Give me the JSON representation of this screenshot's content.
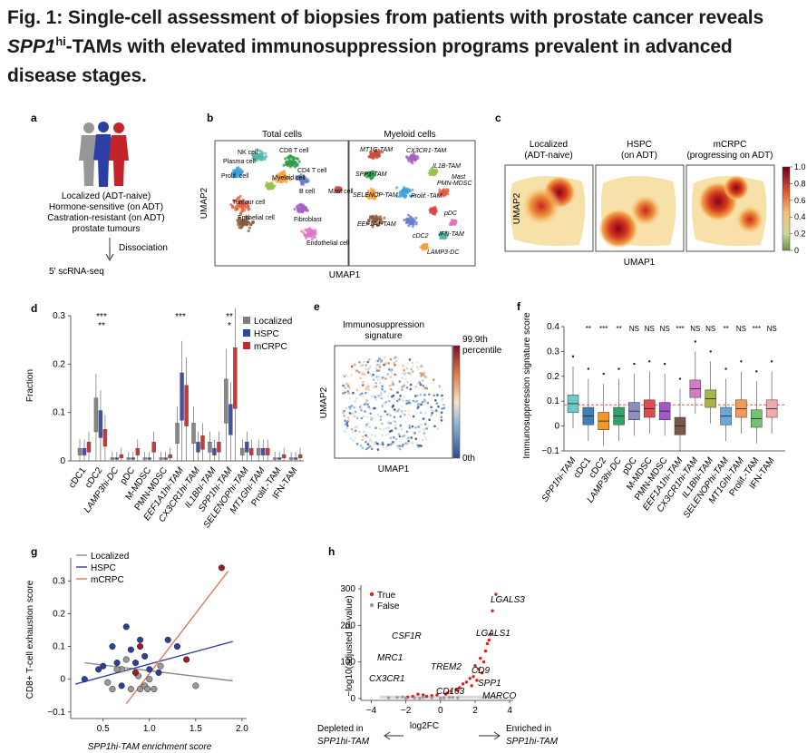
{
  "caption": {
    "lead": "Fig. 1: Single-cell assessment of biopsies from patients with prostate cancer reveals ",
    "gene": "SPP1",
    "sup": "hi",
    "rest": "-TAMs with elevated immunosuppression programs prevalent in advanced disease stages."
  },
  "panel_a": {
    "label": "a",
    "lines": [
      "Localized (ADT-naive)",
      "Hormone-sensitive (on ADT)",
      "Castration-resistant (on ADT)",
      "prostate tumours"
    ],
    "step": "Dissociation",
    "result": "5′ scRNA-seq"
  },
  "panel_b": {
    "label": "b",
    "xlabel": "UMAP1",
    "ylabel": "UMAP2",
    "left_title": "Total cells",
    "right_title": "Myeloid cells",
    "left_clusters": [
      "NK cell",
      "CD8 T cell",
      "Plasma cell",
      "Prolif. cell",
      "Myeloid cell",
      "CD4 T cell",
      "B cell",
      "Mast cell",
      "Tumour cell",
      "Fibroblast",
      "Epithelial cell",
      "Endothelial cell"
    ],
    "right_clusters": [
      "MT1G-TAM",
      "CX3CR1-TAM",
      "SPP1-TAM",
      "IL1B-TAM",
      "PMN-MDSC",
      "SELENOP-TAM",
      "Prolif.-TAM",
      "Mast",
      "EEF1A1-TAM",
      "cDC2",
      "IFN-TAM",
      "pDC",
      "LAMP3-DC"
    ],
    "colors": [
      "#e8593a",
      "#c94b3a",
      "#3ea0d8",
      "#2e9b48",
      "#f4a23a",
      "#8b5a3c",
      "#a45fc4",
      "#e076c0",
      "#55b6a8",
      "#d94545",
      "#98c24a",
      "#6a7fc8"
    ]
  },
  "panel_c": {
    "label": "c",
    "xlabel": "UMAP1",
    "ylabel": "UMAP2",
    "titles": [
      [
        "Localized",
        "(ADT-naive)"
      ],
      [
        "HSPC",
        "(on ADT)"
      ],
      [
        "mCRPC",
        "(progressing on ADT)"
      ]
    ],
    "colorbar_ticks": [
      "1.0",
      "0.8",
      "0.6",
      "0.4",
      "0.2",
      "0"
    ]
  },
  "panel_e": {
    "label": "e",
    "title": [
      "Immunosuppression",
      "signature"
    ],
    "xlabel": "UMAP1",
    "ylabel": "UMAP2",
    "colorbar_top": [
      "99.9th",
      "percentile"
    ],
    "colorbar_bottom": "0th"
  },
  "panel_h": {
    "label": "h",
    "ylabel": "−log10(adjusted P-value)",
    "xlabel": "log2FC",
    "legend": [
      "True",
      "False"
    ],
    "left_note": [
      "Depleted in",
      "SPP1hi-TAM"
    ],
    "right_note": [
      "Enriched in",
      "SPP1hi-TAM"
    ],
    "genes": [
      "LGALS3",
      "LGALS1",
      "CSF1R",
      "MRC1",
      "TREM2",
      "CD9",
      "SPP1",
      "CX3CR1",
      "CD163",
      "MARCO"
    ]
  },
  "chart_data": [
    {
      "id": "d",
      "type": "bar",
      "label": "d",
      "ylabel": "Fraction",
      "ylim": [
        0,
        0.3
      ],
      "yticks": [
        "0",
        "0.1",
        "0.2",
        "0.3"
      ],
      "legend": [
        "Localized",
        "HSPC",
        "mCRPC"
      ],
      "legend_colors": [
        "#7f7f7f",
        "#2f45a8",
        "#c52a2a"
      ],
      "categories": [
        "cDC1",
        "cDC2",
        "LAMP3hi-DC",
        "pDC",
        "M-MDSC",
        "PMN-MDSC",
        "EEF1A1hi-TAM",
        "CX3CR1hi-TAM",
        "IL1Bhi-TAM",
        "SPP1hi-TAM",
        "SELENOPhi-TAM",
        "MT1Ghi-TAM",
        "Prolif.-TAM",
        "IFN-TAM"
      ],
      "series": [
        {
          "name": "Localized",
          "values": [
            0.02,
            0.1,
            0.005,
            0.005,
            0.005,
            0.005,
            0.06,
            0.06,
            0.03,
            0.13,
            0.02,
            0.02,
            0.005,
            0.005
          ]
        },
        {
          "name": "HSPC",
          "values": [
            0.02,
            0.08,
            0.005,
            0.005,
            0.005,
            0.005,
            0.14,
            0.03,
            0.02,
            0.09,
            0.03,
            0.02,
            0.005,
            0.005
          ]
        },
        {
          "name": "mCRPC",
          "values": [
            0.03,
            0.05,
            0.01,
            0.02,
            0.03,
            0.01,
            0.12,
            0.04,
            0.03,
            0.18,
            0.02,
            0.02,
            0.01,
            0.01
          ]
        }
      ],
      "annotations": [
        "***",
        "**",
        "***",
        "**",
        "*"
      ]
    },
    {
      "id": "f",
      "type": "bar",
      "label": "f",
      "ylabel": "Immunosuppression signature score",
      "ylim": [
        -0.1,
        0.4
      ],
      "yticks": [
        "−0.1",
        "0",
        "0.1",
        "0.2",
        "0.3",
        "0.4"
      ],
      "categories": [
        "SPP1hi-TAM",
        "cDC1",
        "cDC2",
        "LAMP3hi-DC",
        "pDC",
        "M-MDSC",
        "PMN-MDSC",
        "EEF1A1hi-TAM",
        "CX3CR1hi-TAM",
        "IL1Bhi-TAM",
        "SELENOPhi-TAM",
        "MT1Ghi-TAM",
        "Prolif.-TAM",
        "IFN-TAM"
      ],
      "values": [
        0.09,
        0.04,
        0.02,
        0.04,
        0.06,
        0.07,
        0.06,
        0.0,
        0.15,
        0.11,
        0.04,
        0.07,
        0.03,
        0.07
      ],
      "colors": [
        "#6dc8c8",
        "#3f7fb5",
        "#f0982a",
        "#2ea26f",
        "#8b8fc0",
        "#e04b4b",
        "#a059c8",
        "#7a5848",
        "#d77ac6",
        "#a6b64a",
        "#6aa8d8",
        "#f39a56",
        "#74c373",
        "#f1a9ae"
      ],
      "annotations": [
        "**",
        "***",
        "**",
        "NS",
        "NS",
        "NS",
        "***",
        "NS",
        "NS",
        "**",
        "NS",
        "***",
        "NS"
      ]
    },
    {
      "id": "g",
      "type": "scatter",
      "label": "g",
      "xlabel": "SPP1hi-TAM enrichment score",
      "ylabel": "CD8+ T-cell exhaustion score",
      "xlim": [
        0.15,
        2.05
      ],
      "ylim": [
        -0.12,
        0.37
      ],
      "xticks": [
        "0.5",
        "1.0",
        "1.5",
        "2.0"
      ],
      "yticks": [
        "−0.1",
        "0",
        "0.1",
        "0.2",
        "0.3"
      ],
      "legend": [
        "Localized",
        "HSPC",
        "mCRPC"
      ],
      "series": [
        {
          "name": "Localized",
          "color": "#999999",
          "x": [
            0.55,
            0.7,
            0.8,
            0.85,
            0.9,
            0.95,
            1.0,
            1.05,
            0.75,
            0.65,
            0.88,
            1.12,
            0.6,
            0.98,
            1.5
          ],
          "y": [
            -0.01,
            0.03,
            -0.03,
            0.02,
            -0.03,
            -0.02,
            0.0,
            -0.03,
            0.06,
            0.03,
            0.01,
            0.04,
            -0.03,
            -0.03,
            -0.02
          ]
        },
        {
          "name": "HSPC",
          "color": "#2e3f9b",
          "x": [
            0.3,
            0.5,
            0.6,
            0.7,
            0.8,
            0.9,
            1.0,
            1.1,
            1.3,
            0.75,
            0.85,
            0.95,
            1.2,
            0.45,
            0.65
          ],
          "y": [
            0.0,
            0.04,
            0.1,
            -0.02,
            0.09,
            0.12,
            0.03,
            0.02,
            0.1,
            0.16,
            0.05,
            0.07,
            0.12,
            0.03,
            0.05
          ]
        },
        {
          "name": "mCRPC",
          "color": "#a01b24",
          "x": [
            0.9,
            1.4,
            1.78,
            0.85
          ],
          "y": [
            0.1,
            0.06,
            0.34,
            0.02
          ]
        }
      ],
      "fits": [
        {
          "name": "Localized",
          "color": "#8a8a8a",
          "x": [
            0.3,
            1.9
          ],
          "y": [
            0.05,
            -0.005
          ]
        },
        {
          "name": "HSPC",
          "color": "#2e3f9b",
          "x": [
            0.2,
            1.9
          ],
          "y": [
            -0.015,
            0.115
          ]
        },
        {
          "name": "mCRPC",
          "color": "#e07a5f",
          "x": [
            0.75,
            1.85
          ],
          "y": [
            -0.075,
            0.33
          ]
        }
      ]
    },
    {
      "id": "h",
      "type": "scatter",
      "label": "h",
      "xlim": [
        -4.6,
        4.2
      ],
      "ylim": [
        -5,
        310
      ],
      "xticks": [
        "−4",
        "−2",
        "0",
        "2",
        "4"
      ],
      "yticks": [
        "0",
        "100",
        "200",
        "300"
      ],
      "series": [
        {
          "name": "True",
          "color": "#e01f1f",
          "x": [
            3.2,
            2.9,
            2.6,
            2.3,
            2.0,
            2.4,
            1.7,
            1.5,
            1.3,
            1.1,
            0.9,
            2.7,
            2.2,
            1.9,
            -0.5,
            -1.0,
            -1.3,
            -1.6,
            -1.9,
            0.6,
            0.4,
            3.0,
            2.5,
            1.8,
            0.3,
            -0.2,
            -0.8,
            1.0,
            2.1,
            2.8
          ],
          "y": [
            285,
            175,
            130,
            110,
            90,
            70,
            55,
            45,
            40,
            30,
            25,
            150,
            80,
            60,
            8,
            10,
            12,
            6,
            4,
            20,
            15,
            240,
            100,
            35,
            12,
            10,
            6,
            22,
            50,
            160
          ]
        },
        {
          "name": "False",
          "color": "#9a9a9a",
          "x": [
            -3.0,
            -2.5,
            -2.0,
            -1.5,
            -1.0,
            -0.5,
            0.0,
            0.5,
            1.0,
            -2.2,
            -1.2,
            0.2,
            0.7
          ],
          "y": [
            2,
            3,
            1,
            2,
            3,
            2,
            1,
            3,
            2,
            4,
            1,
            2,
            3
          ]
        }
      ]
    }
  ]
}
